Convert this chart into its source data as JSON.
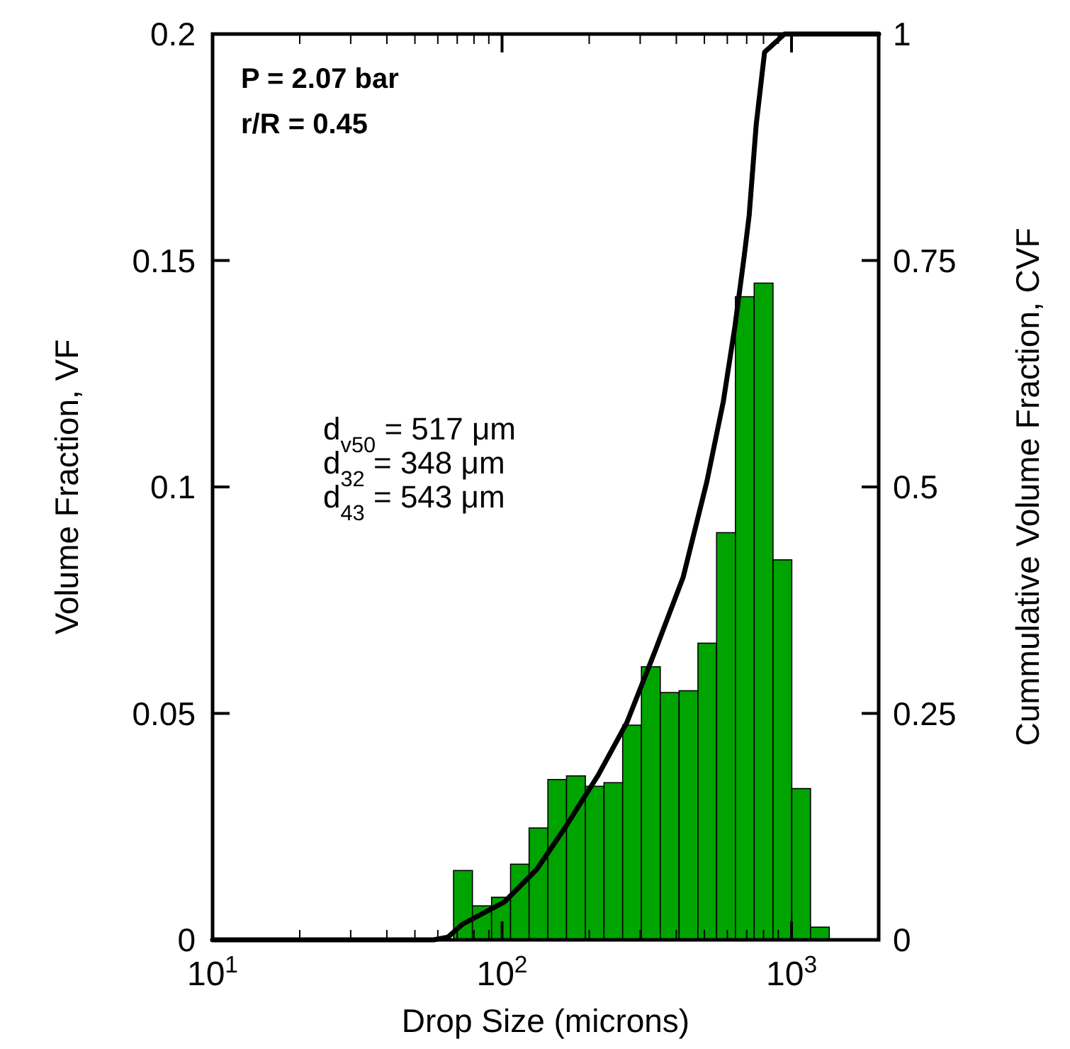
{
  "chart_data": {
    "type": "histogram",
    "xlabel": "Drop Size (microns)",
    "ylabel": "Volume Fraction, VF",
    "y2label": "Cummulative Volume Fraction, CVF",
    "log": "x",
    "xlim": [
      10,
      2000
    ],
    "xticks": [
      {
        "value": 10,
        "label": "10$^{1}$"
      },
      {
        "value": 100,
        "label": "10$^{2}$"
      },
      {
        "value": 1000,
        "label": "10$^{3}$"
      }
    ],
    "ylim": [
      0,
      0.2
    ],
    "yticks": [
      0,
      0.05,
      0.1,
      0.15,
      0.2
    ],
    "y2lim": [
      0,
      1
    ],
    "y2ticks": [
      0,
      0.25,
      0.5,
      0.75,
      1
    ],
    "grid": false,
    "series": [
      {
        "color": "#00a400",
        "bins": [
          68,
          79,
          92,
          107,
          124,
          144,
          167,
          194,
          225,
          261,
          303,
          352,
          409,
          475,
          551,
          640,
          743,
          863,
          1002,
          1163,
          1350
        ],
        "values": [
          0.0153,
          0.0075,
          0.0094,
          0.0167,
          0.0247,
          0.0354,
          0.0362,
          0.0339,
          0.0347,
          0.0474,
          0.0603,
          0.0546,
          0.055,
          0.0655,
          0.0899,
          0.142,
          0.145,
          0.0839,
          0.0334,
          0.0028
        ]
      },
      {
        "type": "line",
        "axis": "y2",
        "color": "#000000",
        "marker": "none",
        "line_style": "solid",
        "x": [
          10,
          58,
          65,
          72.8,
          102,
          132,
          166,
          215,
          270,
          337,
          422,
          510,
          581,
          638,
          687,
          714,
          755,
          807,
          946,
          2000
        ],
        "values": [
          0,
          0,
          0.003,
          0.017,
          0.042,
          0.078,
          0.125,
          0.182,
          0.24,
          0.318,
          0.4,
          0.506,
          0.594,
          0.678,
          0.756,
          0.8,
          0.9,
          0.98,
          1,
          1
        ]
      }
    ],
    "annotations": [
      "P = 2.07 bar",
      "r/R = 0.45",
      "d$_{v50}$ = 517 μm",
      "d$_{32}$ = 348 μm",
      "d$_{43}$ = 543 μm"
    ]
  }
}
